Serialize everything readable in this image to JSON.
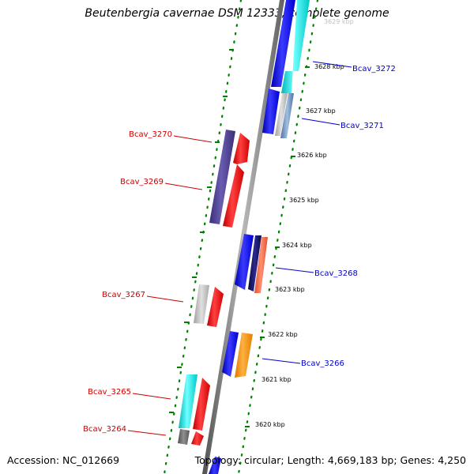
{
  "title": "Beutenbergia cavernae DSM 12333, complete genome",
  "accession": "Accession: NC_012669",
  "topology": "Topology: circular; Length: 4,669,183 bp; Genes: 4,250",
  "kbp_labels": {
    "k3629": "3629 kbp",
    "k3628": "3628 kbp",
    "k3627": "3627 kbp",
    "k3626": "3626 kbp",
    "k3625": "3625 kbp",
    "k3624": "3624 kbp",
    "k3623": "3623 kbp",
    "k3622": "3622 kbp",
    "k3621": "3621 kbp",
    "k3620": "3620 kbp"
  },
  "gene_labels": {
    "g3272": "Bcav_3272",
    "g3271": "Bcav_3271",
    "g3270": "Bcav_3270",
    "g3269": "Bcav_3269",
    "g3268": "Bcav_3268",
    "g3267": "Bcav_3267",
    "g3266": "Bcav_3266",
    "g3265": "Bcav_3265",
    "g3264": "Bcav_3264"
  },
  "colors": {
    "forward_label": "#0000cc",
    "reverse_label": "#cc0000",
    "backbone": "#808080",
    "tick": "#008000",
    "blue": "#0000ff",
    "cyan": "#00e0e0",
    "red": "#ff0000",
    "orange": "#ff9900",
    "purple": "#4b3d8f",
    "navy": "#101060",
    "salmon": "#ff7050",
    "steel": "#7090c0",
    "light_gray": "#c0c0c0",
    "dark_gray": "#707070"
  }
}
